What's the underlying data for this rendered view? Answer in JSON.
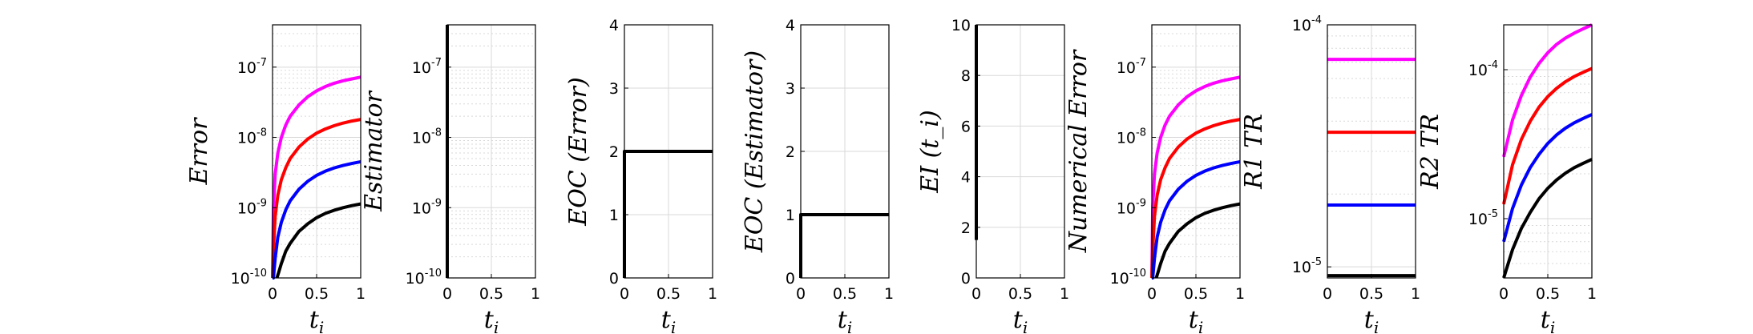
{
  "colors": {
    "axis": "#000000",
    "grid": "#d9d9d9",
    "series": [
      "#ff00ff",
      "#ff0000",
      "#0000ff",
      "#000000"
    ]
  },
  "chart_data": [
    {
      "type": "line",
      "id": "p1",
      "ylabel": "Error",
      "xlabel": "t_i",
      "xlim": [
        0,
        1
      ],
      "xticks": [
        0,
        0.5,
        1
      ],
      "xtick_labels": [
        "0",
        "0.5",
        "1"
      ],
      "yscale": "log",
      "ylim": [
        1e-10,
        4e-07
      ],
      "yticks": [
        1e-10,
        1e-09,
        1e-08,
        1e-07
      ],
      "ytick_labels": [
        "10^-10",
        "10^-9",
        "10^-8",
        "10^-7"
      ],
      "ytick_display": [
        {
          "base": "10",
          "exp": "-10"
        },
        {
          "base": "10",
          "exp": "-9"
        },
        {
          "base": "10",
          "exp": "-8"
        },
        {
          "base": "10",
          "exp": "-7"
        }
      ],
      "grid": true,
      "series": [
        {
          "x": [
            0,
            0.01,
            0.03,
            0.06,
            0.1,
            0.15,
            0.2,
            0.3,
            0.4,
            0.5,
            0.6,
            0.7,
            0.8,
            0.9,
            1.0
          ],
          "y": [
            1e-10,
            1e-09,
            3e-09,
            6e-09,
            1e-08,
            1.5e-08,
            2e-08,
            2.9e-08,
            3.8e-08,
            4.6e-08,
            5.3e-08,
            5.9e-08,
            6.4e-08,
            6.8e-08,
            7.2e-08
          ]
        },
        {
          "x": [
            0,
            0.01,
            0.03,
            0.06,
            0.1,
            0.15,
            0.2,
            0.3,
            0.4,
            0.5,
            0.6,
            0.7,
            0.8,
            0.9,
            1.0
          ],
          "y": [
            1e-10,
            2.5e-10,
            7.5e-10,
            1.5e-09,
            2.5e-09,
            3.7e-09,
            5e-09,
            7.3e-09,
            9.5e-09,
            1.15e-08,
            1.32e-08,
            1.47e-08,
            1.6e-08,
            1.71e-08,
            1.8e-08
          ]
        },
        {
          "x": [
            0,
            0.01,
            0.03,
            0.06,
            0.1,
            0.15,
            0.2,
            0.3,
            0.4,
            0.5,
            0.6,
            0.7,
            0.8,
            0.9,
            1.0
          ],
          "y": [
            1e-10,
            1e-10,
            1.9e-10,
            3.8e-10,
            6.2e-10,
            9.3e-10,
            1.25e-09,
            1.83e-09,
            2.38e-09,
            2.88e-09,
            3.31e-09,
            3.68e-09,
            3.99e-09,
            4.26e-09,
            4.5e-09
          ]
        },
        {
          "x": [
            0.05,
            0.07,
            0.1,
            0.15,
            0.2,
            0.3,
            0.4,
            0.5,
            0.6,
            0.7,
            0.8,
            0.9,
            1.0
          ],
          "y": [
            1e-10,
            1.2e-10,
            1.6e-10,
            2.4e-10,
            3.1e-10,
            4.6e-10,
            5.9e-10,
            7.2e-10,
            8.3e-10,
            9.2e-10,
            1e-09,
            1.07e-09,
            1.13e-09
          ]
        }
      ]
    },
    {
      "type": "line",
      "id": "p2",
      "ylabel": "Estimator",
      "xlabel": "t_i",
      "xlim": [
        0,
        1
      ],
      "xticks": [
        0,
        0.5,
        1
      ],
      "xtick_labels": [
        "0",
        "0.5",
        "1"
      ],
      "yscale": "log",
      "ylim": [
        1e-10,
        4e-07
      ],
      "yticks": [
        1e-10,
        1e-09,
        1e-08,
        1e-07
      ],
      "ytick_labels": [
        "10^-10",
        "10^-9",
        "10^-8",
        "10^-7"
      ],
      "ytick_display": [
        {
          "base": "10",
          "exp": "-10"
        },
        {
          "base": "10",
          "exp": "-9"
        },
        {
          "base": "10",
          "exp": "-8"
        },
        {
          "base": "10",
          "exp": "-7"
        }
      ],
      "grid": true,
      "series": [
        {
          "x": [
            0,
            0
          ],
          "y": [
            1e-10,
            4e-07
          ]
        },
        {
          "x": [
            0,
            0
          ],
          "y": [
            1e-10,
            4e-07
          ]
        },
        {
          "x": [
            0,
            0
          ],
          "y": [
            1e-10,
            4e-07
          ]
        },
        {
          "x": [
            0,
            0
          ],
          "y": [
            1e-10,
            4e-07
          ]
        }
      ]
    },
    {
      "type": "line",
      "id": "p3",
      "ylabel": "EOC (Error)",
      "xlabel": "t_i",
      "xlim": [
        0,
        1
      ],
      "xticks": [
        0,
        0.5,
        1
      ],
      "xtick_labels": [
        "0",
        "0.5",
        "1"
      ],
      "yscale": "linear",
      "ylim": [
        0,
        4
      ],
      "yticks": [
        0,
        1,
        2,
        3,
        4
      ],
      "ytick_labels": [
        "0",
        "1",
        "2",
        "3",
        "4"
      ],
      "grid": true,
      "series": [
        {
          "x": [
            0,
            0,
            1
          ],
          "y": [
            0,
            2,
            2
          ]
        }
      ]
    },
    {
      "type": "line",
      "id": "p4",
      "ylabel": "EOC (Estimator)",
      "xlabel": "t_i",
      "xlim": [
        0,
        1
      ],
      "xticks": [
        0,
        0.5,
        1
      ],
      "xtick_labels": [
        "0",
        "0.5",
        "1"
      ],
      "yscale": "linear",
      "ylim": [
        0,
        4
      ],
      "yticks": [
        0,
        1,
        2,
        3,
        4
      ],
      "ytick_labels": [
        "0",
        "1",
        "2",
        "3",
        "4"
      ],
      "grid": true,
      "series": [
        {
          "x": [
            0,
            0,
            1
          ],
          "y": [
            0,
            1,
            1
          ]
        }
      ]
    },
    {
      "type": "line",
      "id": "p5",
      "ylabel": "EI (t_i)",
      "xlabel": "t_i",
      "xlim": [
        0,
        1
      ],
      "xticks": [
        0,
        0.5,
        1
      ],
      "xtick_labels": [
        "0",
        "0.5",
        "1"
      ],
      "yscale": "linear",
      "ylim": [
        0,
        10
      ],
      "yticks": [
        0,
        2,
        4,
        6,
        8,
        10
      ],
      "ytick_labels": [
        "0",
        "2",
        "4",
        "6",
        "8",
        "10"
      ],
      "grid": true,
      "series": [
        {
          "x": [
            0,
            0
          ],
          "y": [
            1.5,
            10
          ]
        }
      ]
    },
    {
      "type": "line",
      "id": "p6",
      "ylabel": "Numerical Error",
      "xlabel": "t_i",
      "xlim": [
        0,
        1
      ],
      "xticks": [
        0,
        0.5,
        1
      ],
      "xtick_labels": [
        "0",
        "0.5",
        "1"
      ],
      "yscale": "log",
      "ylim": [
        1e-10,
        4e-07
      ],
      "yticks": [
        1e-10,
        1e-09,
        1e-08,
        1e-07
      ],
      "ytick_labels": [
        "10^-10",
        "10^-9",
        "10^-8",
        "10^-7"
      ],
      "ytick_display": [
        {
          "base": "10",
          "exp": "-10"
        },
        {
          "base": "10",
          "exp": "-9"
        },
        {
          "base": "10",
          "exp": "-8"
        },
        {
          "base": "10",
          "exp": "-7"
        }
      ],
      "grid": true,
      "series": [
        {
          "x": [
            0,
            0.01,
            0.03,
            0.06,
            0.1,
            0.15,
            0.2,
            0.3,
            0.4,
            0.5,
            0.6,
            0.7,
            0.8,
            0.9,
            1.0
          ],
          "y": [
            1e-10,
            1e-09,
            3e-09,
            6e-09,
            1e-08,
            1.5e-08,
            2e-08,
            2.9e-08,
            3.8e-08,
            4.6e-08,
            5.3e-08,
            5.9e-08,
            6.4e-08,
            6.8e-08,
            7.2e-08
          ]
        },
        {
          "x": [
            0,
            0.01,
            0.03,
            0.06,
            0.1,
            0.15,
            0.2,
            0.3,
            0.4,
            0.5,
            0.6,
            0.7,
            0.8,
            0.9,
            1.0
          ],
          "y": [
            1e-10,
            2.5e-10,
            7.5e-10,
            1.5e-09,
            2.5e-09,
            3.7e-09,
            5e-09,
            7.3e-09,
            9.5e-09,
            1.15e-08,
            1.32e-08,
            1.47e-08,
            1.6e-08,
            1.71e-08,
            1.8e-08
          ]
        },
        {
          "x": [
            0,
            0.01,
            0.03,
            0.06,
            0.1,
            0.15,
            0.2,
            0.3,
            0.4,
            0.5,
            0.6,
            0.7,
            0.8,
            0.9,
            1.0
          ],
          "y": [
            1e-10,
            1e-10,
            1.9e-10,
            3.8e-10,
            6.2e-10,
            9.3e-10,
            1.25e-09,
            1.83e-09,
            2.38e-09,
            2.88e-09,
            3.31e-09,
            3.68e-09,
            3.99e-09,
            4.26e-09,
            4.5e-09
          ]
        },
        {
          "x": [
            0.05,
            0.07,
            0.1,
            0.15,
            0.2,
            0.3,
            0.4,
            0.5,
            0.6,
            0.7,
            0.8,
            0.9,
            1.0
          ],
          "y": [
            1e-10,
            1.2e-10,
            1.6e-10,
            2.4e-10,
            3.1e-10,
            4.6e-10,
            5.9e-10,
            7.2e-10,
            8.3e-10,
            9.2e-10,
            1e-09,
            1.07e-09,
            1.13e-09
          ]
        }
      ]
    },
    {
      "type": "line",
      "id": "p7",
      "ylabel": "R1 TR",
      "xlabel": "t_i",
      "xlim": [
        0,
        1
      ],
      "xticks": [
        0,
        0.5,
        1
      ],
      "xtick_labels": [
        "0",
        "0.5",
        "1"
      ],
      "yscale": "log",
      "ylim": [
        9e-06,
        0.0001
      ],
      "yticks": [
        1e-05,
        0.0001
      ],
      "ytick_labels": [
        "10^-5",
        "10^-4"
      ],
      "ytick_display": [
        {
          "base": "10",
          "exp": "-5"
        },
        {
          "base": "10",
          "exp": "-4"
        }
      ],
      "grid": true,
      "series": [
        {
          "x": [
            0,
            1
          ],
          "y": [
            7.2e-05,
            7.2e-05
          ]
        },
        {
          "x": [
            0,
            1
          ],
          "y": [
            3.6e-05,
            3.6e-05
          ]
        },
        {
          "x": [
            0,
            1
          ],
          "y": [
            1.8e-05,
            1.8e-05
          ]
        },
        {
          "x": [
            0,
            1
          ],
          "y": [
            9.2e-06,
            9.2e-06
          ]
        }
      ]
    },
    {
      "type": "line",
      "id": "p8",
      "ylabel": "R2 TR",
      "xlabel": "t_i",
      "xlim": [
        0,
        1
      ],
      "xticks": [
        0,
        0.5,
        1
      ],
      "xtick_labels": [
        "0",
        "0.5",
        "1"
      ],
      "yscale": "log",
      "ylim": [
        4e-06,
        0.0002
      ],
      "yticks": [
        1e-05,
        0.0001
      ],
      "ytick_labels": [
        "10^-5",
        "10^-4"
      ],
      "ytick_display": [
        {
          "base": "10",
          "exp": "-5"
        },
        {
          "base": "10",
          "exp": "-4"
        }
      ],
      "grid": true,
      "series": [
        {
          "x": [
            0,
            0.1,
            0.2,
            0.3,
            0.4,
            0.5,
            0.6,
            0.7,
            0.8,
            0.9,
            1.0
          ],
          "y": [
            2.6e-05,
            4.6e-05,
            6.7e-05,
            8.9e-05,
            0.00011,
            0.00013,
            0.000148,
            0.000163,
            0.000176,
            0.000188,
            0.0002
          ]
        },
        {
          "x": [
            0,
            0.1,
            0.2,
            0.3,
            0.4,
            0.5,
            0.6,
            0.7,
            0.8,
            0.9,
            1.0
          ],
          "y": [
            1.25e-05,
            2.3e-05,
            3.4e-05,
            4.5e-05,
            5.6e-05,
            6.6e-05,
            7.5e-05,
            8.3e-05,
            9e-05,
            9.6e-05,
            0.000102
          ]
        },
        {
          "x": [
            0,
            0.1,
            0.2,
            0.3,
            0.4,
            0.5,
            0.6,
            0.7,
            0.8,
            0.9,
            1.0
          ],
          "y": [
            7e-06,
            1.17e-05,
            1.68e-05,
            2.2e-05,
            2.7e-05,
            3.2e-05,
            3.65e-05,
            4.05e-05,
            4.4e-05,
            4.7e-05,
            5e-05
          ]
        },
        {
          "x": [
            0,
            0.1,
            0.2,
            0.3,
            0.4,
            0.5,
            0.6,
            0.7,
            0.8,
            0.9,
            1.0
          ],
          "y": [
            4e-06,
            6.2e-06,
            8.6e-06,
            1.1e-05,
            1.36e-05,
            1.6e-05,
            1.82e-05,
            2.02e-05,
            2.2e-05,
            2.35e-05,
            2.5e-05
          ]
        }
      ]
    }
  ]
}
